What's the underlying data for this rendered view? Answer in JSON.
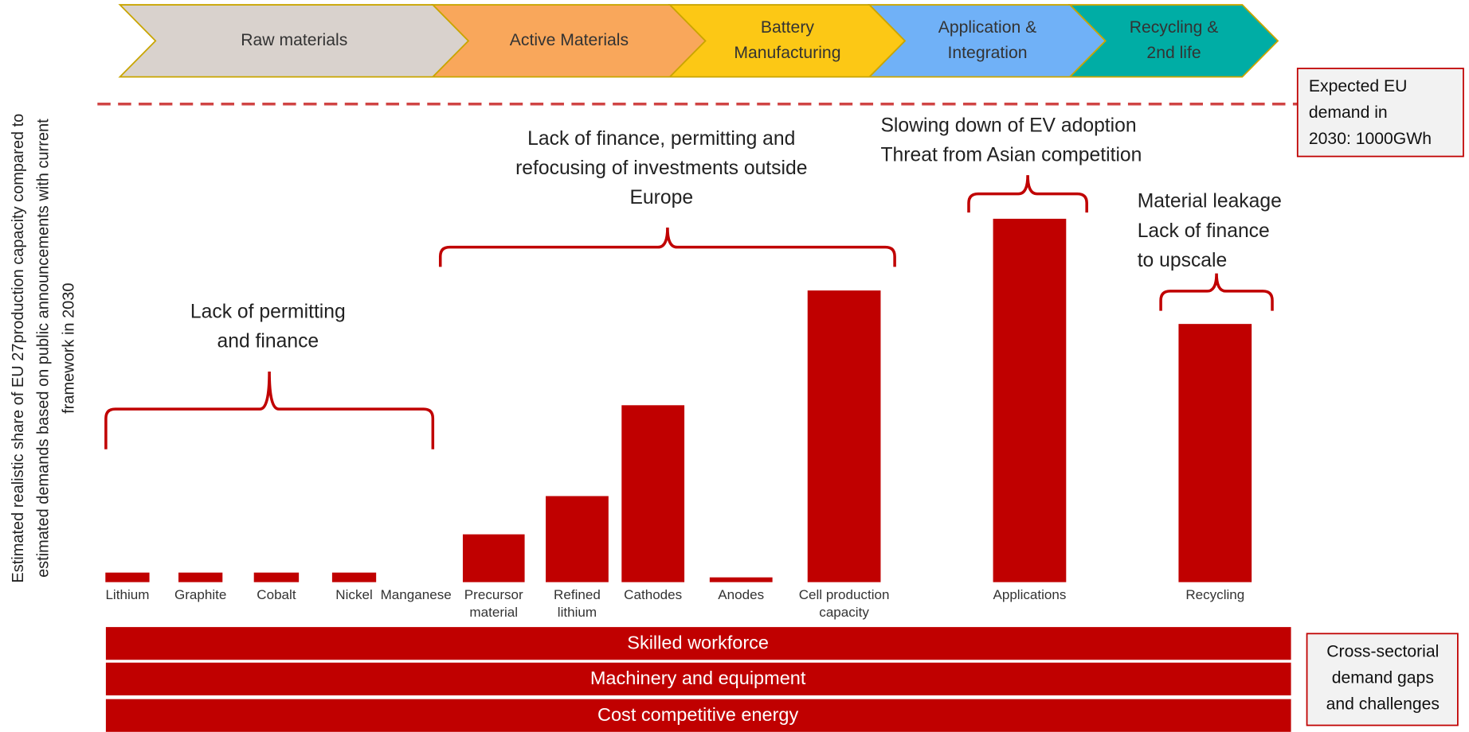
{
  "chart_data": {
    "type": "bar",
    "y_label_lines": [
      "Estimated realistic share of EU 27production capacity compared to",
      "estimated demands based on public announcements with current",
      "framework in 2030"
    ],
    "stages": [
      {
        "lines": [
          "Raw materials"
        ],
        "color": "#d9d2cd"
      },
      {
        "lines": [
          "Active Materials"
        ],
        "color": "#f9a75b"
      },
      {
        "lines": [
          "Battery",
          "Manufacturing"
        ],
        "color": "#fcc815"
      },
      {
        "lines": [
          "Application &",
          "Integration"
        ],
        "color": "#70b1f7"
      },
      {
        "lines": [
          "Recycling &",
          "2nd life"
        ],
        "color": "#00ada5"
      }
    ],
    "demand_note": [
      "Expected EU",
      "demand in",
      "2030: 1000GWh"
    ],
    "categories": [
      "Lithium",
      "Graphite",
      "Cobalt",
      "Nickel",
      "Manganese",
      "Precursor material",
      "Refined lithium",
      "Cathodes",
      "Anodes",
      "Cell production capacity",
      "Applications",
      "Recycling"
    ],
    "values": [
      2,
      2,
      2,
      2,
      0,
      10,
      18,
      37,
      1,
      61,
      76,
      54
    ],
    "color": "#c00000",
    "ylim": [
      0,
      100
    ],
    "annotations": [
      {
        "lines": [
          "Lack of permitting",
          "and finance"
        ]
      },
      {
        "lines": [
          "Lack of finance, permitting and",
          "refocusing of investments outside",
          "Europe"
        ]
      },
      {
        "lines": [
          "Slowing down of EV adoption",
          "Threat from Asian competition"
        ]
      },
      {
        "lines": [
          "Material leakage",
          "Lack of finance",
          "to upscale"
        ]
      }
    ],
    "cross_sector_gaps": [
      "Skilled workforce",
      "Machinery and equipment",
      "Cost competitive energy"
    ],
    "cross_sector_note": [
      "Cross-sectorial",
      "demand gaps",
      "and challenges"
    ]
  }
}
